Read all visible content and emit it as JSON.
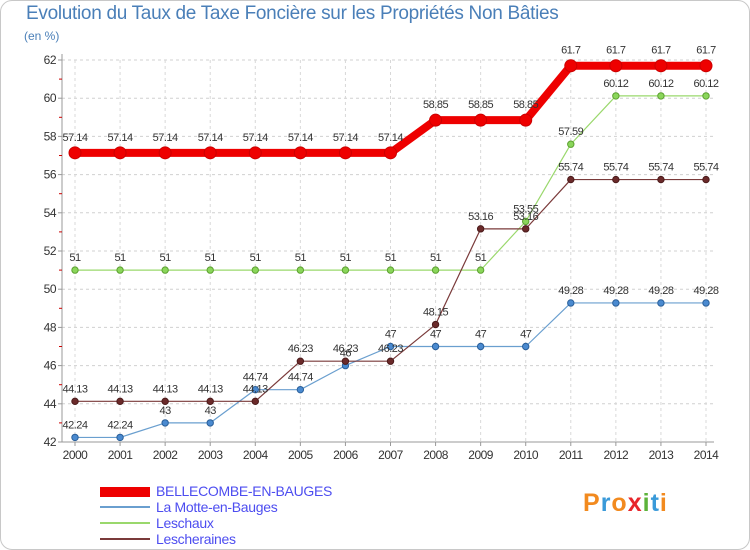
{
  "title": "Evolution du Taux de Taxe Foncière sur les Propriétés Non Bâties",
  "unit_label": "(en %)",
  "logo_text": "Proxiti",
  "logo_colors": [
    "#f28a1f",
    "#3a9ad9",
    "#f28a1f",
    "#e8262b",
    "#5cb33a",
    "#3a9ad9",
    "#f28a1f"
  ],
  "chart_data": {
    "type": "line",
    "title": "Evolution du Taux de Taxe Foncière sur les Propriétés Non Bâties",
    "ylabel": "(en %)",
    "xlabel": "",
    "x": [
      "2000",
      "2001",
      "2002",
      "2003",
      "2004",
      "2005",
      "2006",
      "2007",
      "2008",
      "2009",
      "2010",
      "2011",
      "2012",
      "2013",
      "2014"
    ],
    "ylim": [
      42,
      62
    ],
    "yticks": [
      42,
      44,
      46,
      48,
      50,
      52,
      54,
      56,
      58,
      60,
      62
    ],
    "legend_position": "bottom-left",
    "series": [
      {
        "name": "BELLECOMBE-EN-BAUGES",
        "color": "#ee0000",
        "values": [
          57.14,
          57.14,
          57.14,
          57.14,
          57.14,
          57.14,
          57.14,
          57.14,
          58.85,
          58.85,
          58.85,
          61.7,
          61.7,
          61.7,
          61.7
        ],
        "labels": [
          "57.14",
          "57.14",
          "57.14",
          "57.14",
          "57.14",
          "57.14",
          "57.14",
          "57.14",
          "58.85",
          "58.85",
          "58.85",
          "61.7",
          "61.7",
          "61.7",
          "61.7"
        ]
      },
      {
        "name": "La Motte-en-Bauges",
        "color": "#6a9fcf",
        "values": [
          42.24,
          42.24,
          43,
          43,
          44.74,
          44.74,
          46,
          47,
          47,
          47,
          47,
          49.28,
          49.28,
          49.28,
          49.28
        ],
        "labels": [
          "42.24",
          "42.24",
          "43",
          "43",
          "44.74",
          "44.74",
          "46",
          "47",
          "47",
          "47",
          "47",
          "49.28",
          "49.28",
          "49.28",
          "49.28"
        ]
      },
      {
        "name": "Leschaux",
        "color": "#9ad86c",
        "values": [
          51,
          51,
          51,
          51,
          51,
          51,
          51,
          51,
          51,
          51,
          53.55,
          57.59,
          60.12,
          60.12,
          60.12
        ],
        "labels": [
          "51",
          "51",
          "51",
          "51",
          "51",
          "51",
          "51",
          "51",
          "51",
          "51",
          "53.55",
          "57.59",
          "60.12",
          "60.12",
          "60.12"
        ]
      },
      {
        "name": "Lescheraines",
        "color": "#7a3a3a",
        "values": [
          44.13,
          44.13,
          44.13,
          44.13,
          44.13,
          46.23,
          46.23,
          46.23,
          48.15,
          53.16,
          53.16,
          55.74,
          55.74,
          55.74,
          55.74
        ],
        "labels": [
          "44.13",
          "44.13",
          "44.13",
          "44.13",
          "44.13",
          "46.23",
          "46.23",
          "46.23",
          "48.15",
          "53.16",
          "53.16",
          "55.74",
          "55.74",
          "55.74",
          "55.74"
        ]
      }
    ]
  }
}
